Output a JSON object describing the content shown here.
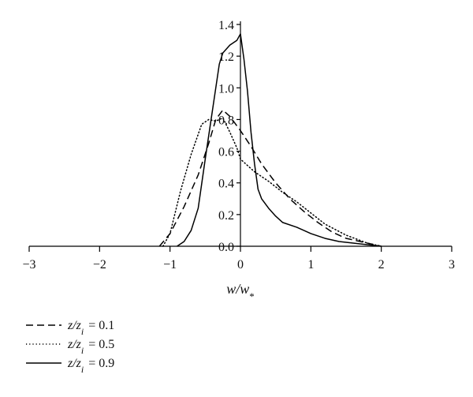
{
  "chart_data": {
    "type": "line",
    "xlabel": "w/w*",
    "ylabel": "",
    "xlim": [
      -3,
      3
    ],
    "ylim": [
      0,
      1.4
    ],
    "x_ticks": [
      -3,
      -2,
      -1,
      0,
      1,
      2,
      3
    ],
    "y_ticks": [
      0.0,
      0.2,
      0.4,
      0.6,
      0.8,
      1.0,
      1.2,
      1.4
    ],
    "x_tick_labels": [
      "−3",
      "−2",
      "−1",
      "0",
      "1",
      "2",
      "3"
    ],
    "y_tick_labels": [
      "0.0",
      "0.2",
      "0.4",
      "0.6",
      "0.8",
      "1.0",
      "1.2",
      "1.4"
    ],
    "grid": false,
    "legend_position": "bottom-left",
    "series": [
      {
        "name": "z/z_i = 0.1",
        "legend_label": {
          "var": "z",
          "sub": "i",
          "value": "0.1"
        },
        "dash": "dashed",
        "x": [
          -1.15,
          -1.0,
          -0.8,
          -0.6,
          -0.45,
          -0.35,
          -0.25,
          -0.15,
          0.0,
          0.15,
          0.3,
          0.5,
          0.7,
          0.9,
          1.1,
          1.3,
          1.5,
          1.7,
          1.9,
          2.0
        ],
        "y": [
          0.0,
          0.08,
          0.25,
          0.45,
          0.65,
          0.8,
          0.86,
          0.82,
          0.73,
          0.63,
          0.52,
          0.4,
          0.3,
          0.22,
          0.15,
          0.09,
          0.05,
          0.03,
          0.01,
          0.0
        ]
      },
      {
        "name": "z/z_i = 0.5",
        "legend_label": {
          "var": "z",
          "sub": "i",
          "value": "0.5"
        },
        "dash": "dotted",
        "x": [
          -1.1,
          -1.0,
          -0.85,
          -0.7,
          -0.55,
          -0.45,
          -0.35,
          -0.25,
          -0.15,
          -0.05,
          0.0,
          0.1,
          0.2,
          0.3,
          0.4,
          0.6,
          0.8,
          1.0,
          1.2,
          1.5,
          1.8,
          2.0
        ],
        "y": [
          0.0,
          0.08,
          0.35,
          0.58,
          0.77,
          0.8,
          0.79,
          0.81,
          0.72,
          0.62,
          0.55,
          0.51,
          0.47,
          0.44,
          0.41,
          0.34,
          0.28,
          0.21,
          0.14,
          0.07,
          0.02,
          0.0
        ]
      },
      {
        "name": "z/z_i = 0.9",
        "legend_label": {
          "var": "z",
          "sub": "i",
          "value": "0.9"
        },
        "dash": "solid",
        "x": [
          -0.9,
          -0.8,
          -0.7,
          -0.6,
          -0.5,
          -0.4,
          -0.3,
          -0.25,
          -0.15,
          -0.05,
          0.0,
          0.05,
          0.1,
          0.15,
          0.2,
          0.25,
          0.3,
          0.4,
          0.5,
          0.6,
          0.8,
          1.0,
          1.2,
          1.4,
          1.6,
          1.8,
          2.0
        ],
        "y": [
          0.0,
          0.03,
          0.1,
          0.24,
          0.55,
          0.85,
          1.15,
          1.22,
          1.27,
          1.3,
          1.34,
          1.18,
          0.98,
          0.72,
          0.52,
          0.36,
          0.3,
          0.24,
          0.19,
          0.15,
          0.12,
          0.08,
          0.05,
          0.03,
          0.02,
          0.01,
          0.0
        ]
      }
    ]
  }
}
